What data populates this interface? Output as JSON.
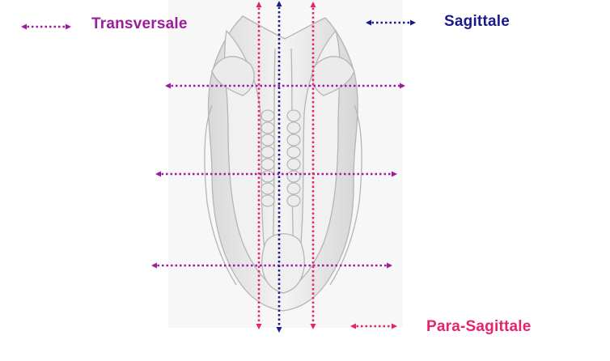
{
  "legend": {
    "transversale": {
      "label": "Transversale",
      "color": "#9c1d9c"
    },
    "sagittale": {
      "label": "Sagittale",
      "color": "#1a1a8c"
    },
    "para_sagittale": {
      "label": "Para-Sagittale",
      "color": "#e8226c"
    }
  },
  "embryo": {
    "fill": "#ececec",
    "stroke": "#bdbdbd",
    "somite_pairs": 8
  }
}
